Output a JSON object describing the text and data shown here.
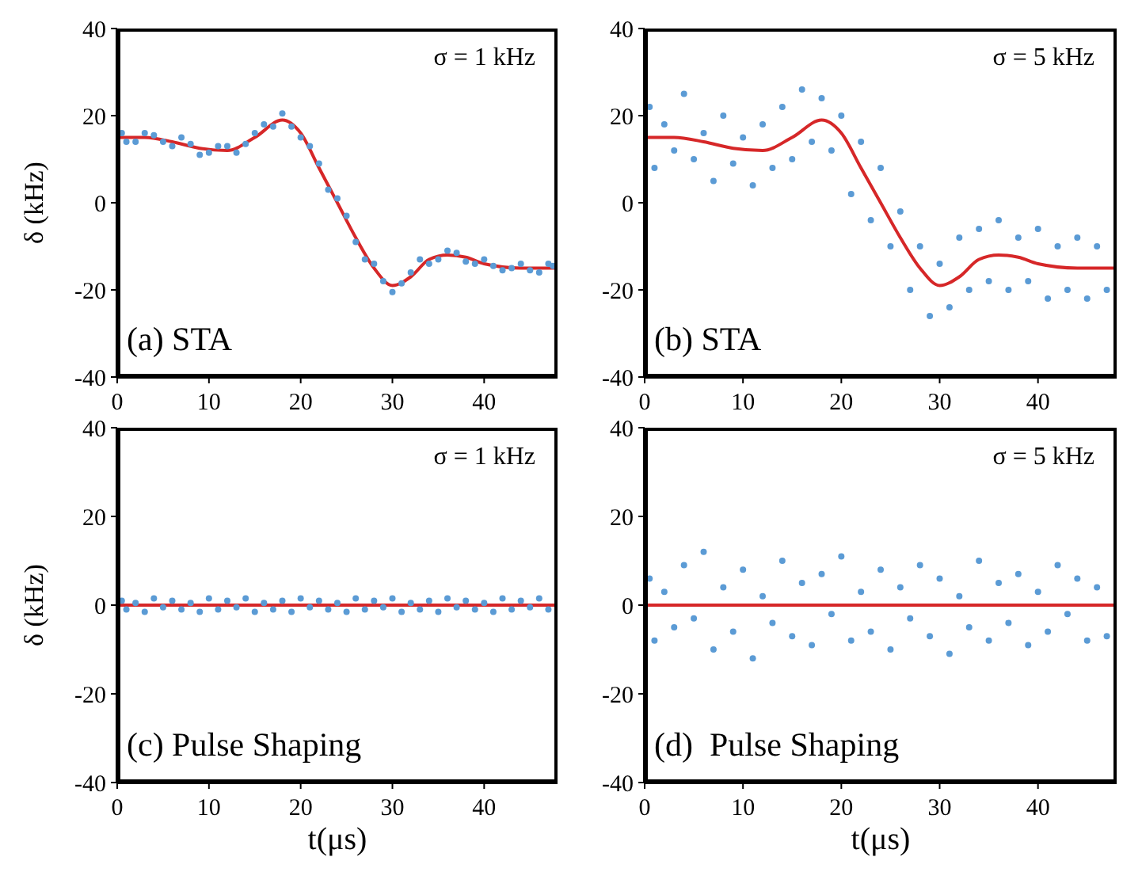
{
  "chart_data": [
    {
      "type": "scatter",
      "ylabel": "δ (kHz)",
      "xlim": [
        0,
        48
      ],
      "xticks": [
        0,
        10,
        20,
        30,
        40
      ],
      "ylim": [
        -40,
        40
      ],
      "yticks": [
        -40,
        -20,
        0,
        20,
        40
      ],
      "annotations": [
        "σ = 1 kHz",
        "(a) STA"
      ],
      "series": [
        {
          "type": "scatter",
          "marker": "circle",
          "color": "#5b9bd5",
          "x": [
            0.5,
            1,
            2,
            3,
            4,
            5,
            6,
            7,
            8,
            9,
            10,
            11,
            12,
            13,
            14,
            15,
            16,
            17,
            18,
            19,
            20,
            21,
            22,
            23,
            24,
            25,
            26,
            27,
            28,
            29,
            30,
            31,
            32,
            33,
            34,
            35,
            36,
            37,
            38,
            39,
            40,
            41,
            42,
            43,
            44,
            45,
            46,
            47,
            47.5
          ],
          "values": [
            16,
            14,
            14,
            16,
            15.5,
            14,
            13,
            15,
            13.5,
            11,
            11.5,
            13,
            13,
            11.5,
            13.5,
            16,
            18,
            17.5,
            20.5,
            17.5,
            15,
            13,
            9,
            3,
            1,
            -3,
            -9,
            -13,
            -14,
            -18,
            -20.5,
            -18.5,
            -16,
            -13,
            -14,
            -13,
            -11,
            -11.5,
            -13.5,
            -14,
            -13,
            -14.5,
            -15.5,
            -15,
            -14,
            -15.5,
            -16,
            -14,
            -14.5
          ]
        },
        {
          "type": "line",
          "color": "#d62728",
          "x": [
            0,
            3,
            6,
            9,
            12,
            15,
            18,
            20,
            22,
            24,
            26,
            28,
            30,
            32,
            34,
            36,
            38,
            40,
            44,
            48
          ],
          "values": [
            15,
            15,
            14,
            12.5,
            12,
            15,
            19,
            16,
            8,
            0,
            -8,
            -15,
            -19,
            -17,
            -13,
            -12,
            -12.5,
            -14,
            -15,
            -15
          ]
        }
      ]
    },
    {
      "type": "scatter",
      "xlim": [
        0,
        48
      ],
      "xticks": [
        0,
        10,
        20,
        30,
        40
      ],
      "ylim": [
        -40,
        40
      ],
      "yticks": [
        -40,
        -20,
        0,
        20,
        40
      ],
      "annotations": [
        "σ = 5 kHz",
        "(b) STA"
      ],
      "series": [
        {
          "type": "scatter",
          "marker": "circle",
          "color": "#5b9bd5",
          "x": [
            0.5,
            1,
            2,
            3,
            4,
            5,
            6,
            7,
            8,
            9,
            10,
            11,
            12,
            13,
            14,
            15,
            16,
            17,
            18,
            19,
            20,
            21,
            22,
            23,
            24,
            25,
            26,
            27,
            28,
            29,
            30,
            31,
            32,
            33,
            34,
            35,
            36,
            37,
            38,
            39,
            40,
            41,
            42,
            43,
            44,
            45,
            46,
            47
          ],
          "values": [
            22,
            8,
            18,
            12,
            25,
            10,
            16,
            5,
            20,
            9,
            15,
            4,
            18,
            8,
            22,
            10,
            26,
            14,
            24,
            12,
            20,
            2,
            14,
            -4,
            8,
            -10,
            -2,
            -20,
            -10,
            -26,
            -14,
            -24,
            -8,
            -20,
            -6,
            -18,
            -4,
            -20,
            -8,
            -18,
            -6,
            -22,
            -10,
            -20,
            -8,
            -22,
            -10,
            -20
          ]
        },
        {
          "type": "line",
          "color": "#d62728",
          "x": [
            0,
            3,
            6,
            9,
            12,
            15,
            18,
            20,
            22,
            24,
            26,
            28,
            30,
            32,
            34,
            36,
            38,
            40,
            44,
            48
          ],
          "values": [
            15,
            15,
            14,
            12.5,
            12,
            15,
            19,
            16,
            8,
            0,
            -8,
            -15,
            -19,
            -17,
            -13,
            -12,
            -12.5,
            -14,
            -15,
            -15
          ]
        }
      ]
    },
    {
      "type": "scatter",
      "ylabel": "δ (kHz)",
      "xlabel": "t(μs)",
      "xlim": [
        0,
        48
      ],
      "xticks": [
        0,
        10,
        20,
        30,
        40
      ],
      "ylim": [
        -40,
        40
      ],
      "yticks": [
        -40,
        -20,
        0,
        20,
        40
      ],
      "annotations": [
        "σ = 1 kHz",
        "(c) Pulse Shaping"
      ],
      "series": [
        {
          "type": "scatter",
          "marker": "circle",
          "color": "#5b9bd5",
          "x": [
            0.5,
            1,
            2,
            3,
            4,
            5,
            6,
            7,
            8,
            9,
            10,
            11,
            12,
            13,
            14,
            15,
            16,
            17,
            18,
            19,
            20,
            21,
            22,
            23,
            24,
            25,
            26,
            27,
            28,
            29,
            30,
            31,
            32,
            33,
            34,
            35,
            36,
            37,
            38,
            39,
            40,
            41,
            42,
            43,
            44,
            45,
            46,
            47
          ],
          "values": [
            1,
            -1,
            0.5,
            -1.5,
            1.5,
            -0.5,
            1,
            -1,
            0.5,
            -1.5,
            1.5,
            -1,
            1,
            -0.5,
            1.5,
            -1.5,
            0.5,
            -1,
            1,
            -1.5,
            1.5,
            -0.5,
            1,
            -1,
            0.5,
            -1.5,
            1.5,
            -1,
            1,
            -0.5,
            1.5,
            -1.5,
            0.5,
            -1,
            1,
            -1.5,
            1.5,
            -0.5,
            1,
            -1,
            0.5,
            -1.5,
            1.5,
            -1,
            1,
            -0.5,
            1.5,
            -1
          ]
        },
        {
          "type": "line",
          "color": "#d62728",
          "x": [
            0,
            48
          ],
          "values": [
            0,
            0
          ]
        }
      ]
    },
    {
      "type": "scatter",
      "xlabel": "t(μs)",
      "xlim": [
        0,
        48
      ],
      "xticks": [
        0,
        10,
        20,
        30,
        40
      ],
      "ylim": [
        -40,
        40
      ],
      "yticks": [
        -40,
        -20,
        0,
        20,
        40
      ],
      "annotations": [
        "σ = 5 kHz",
        "(d)  Pulse Shaping"
      ],
      "series": [
        {
          "type": "scatter",
          "marker": "circle",
          "color": "#5b9bd5",
          "x": [
            0.5,
            1,
            2,
            3,
            4,
            5,
            6,
            7,
            8,
            9,
            10,
            11,
            12,
            13,
            14,
            15,
            16,
            17,
            18,
            19,
            20,
            21,
            22,
            23,
            24,
            25,
            26,
            27,
            28,
            29,
            30,
            31,
            32,
            33,
            34,
            35,
            36,
            37,
            38,
            39,
            40,
            41,
            42,
            43,
            44,
            45,
            46,
            47
          ],
          "values": [
            6,
            -8,
            3,
            -5,
            9,
            -3,
            12,
            -10,
            4,
            -6,
            8,
            -12,
            2,
            -4,
            10,
            -7,
            5,
            -9,
            7,
            -2,
            11,
            -8,
            3,
            -6,
            8,
            -10,
            4,
            -3,
            9,
            -7,
            6,
            -11,
            2,
            -5,
            10,
            -8,
            5,
            -4,
            7,
            -9,
            3,
            -6,
            9,
            -2,
            6,
            -8,
            4,
            -7
          ]
        },
        {
          "type": "line",
          "color": "#d62728",
          "x": [
            0,
            48
          ],
          "values": [
            0,
            0
          ]
        }
      ]
    }
  ]
}
